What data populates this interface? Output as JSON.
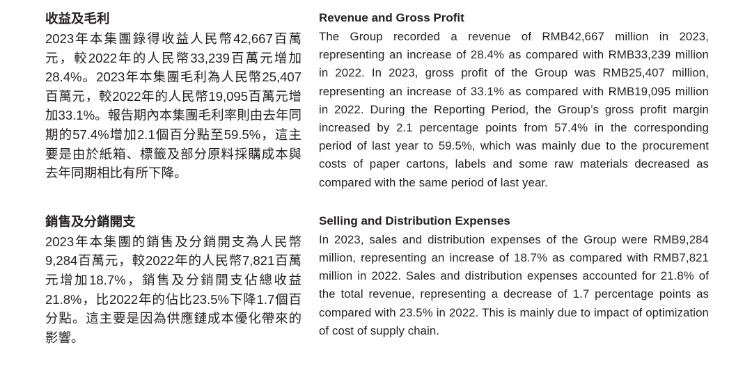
{
  "document": {
    "sections": [
      {
        "zh": {
          "heading": "收益及毛利",
          "body": "2023年本集團錄得收益人民幣42,667百萬元，較2022年的人民幣33,239百萬元增加28.4%。2023年本集團毛利為人民幣25,407百萬元，較2022年的人民幣19,095百萬元增加33.1%。報告期內本集團毛利率則由去年同期的57.4%增加2.1個百分點至59.5%，這主要是由於紙箱、標籤及部分原料採購成本與去年同期相比有所下降。"
        },
        "en": {
          "heading": "Revenue and Gross Profit",
          "body": "The Group recorded a revenue of RMB42,667 million in 2023, representing an increase of 28.4% as compared with RMB33,239 million in 2022. In 2023, gross profit of the Group was RMB25,407 million, representing an increase of 33.1% as compared with RMB19,095 million in 2022. During the Reporting Period, the Group’s gross profit margin increased by 2.1 percentage points from 57.4% in the corresponding period of last year to 59.5%, which was mainly due to the procurement costs of paper cartons, labels and some raw materials decreased as compared with the same period of last year."
        }
      },
      {
        "zh": {
          "heading": "銷售及分銷開支",
          "body": "2023年本集團的銷售及分銷開支為人民幣9,284百萬元，較2022年的人民幣7,821百萬元增加18.7%，銷售及分銷開支佔總收益21.8%，比2022年的佔比23.5%下降1.7個百分點。這主要是因為供應鏈成本優化帶來的影響。"
        },
        "en": {
          "heading": "Selling and Distribution Expenses",
          "body": "In 2023, sales and distribution expenses of the Group were RMB9,284 million, representing an increase of 18.7% as compared with RMB7,821 million in 2022. Sales and distribution expenses accounted for 21.8% of the total revenue, representing a decrease of 1.7 percentage points as compared with 23.5% in 2022. This is mainly due to impact of optimization of cost of supply chain."
        }
      }
    ]
  }
}
